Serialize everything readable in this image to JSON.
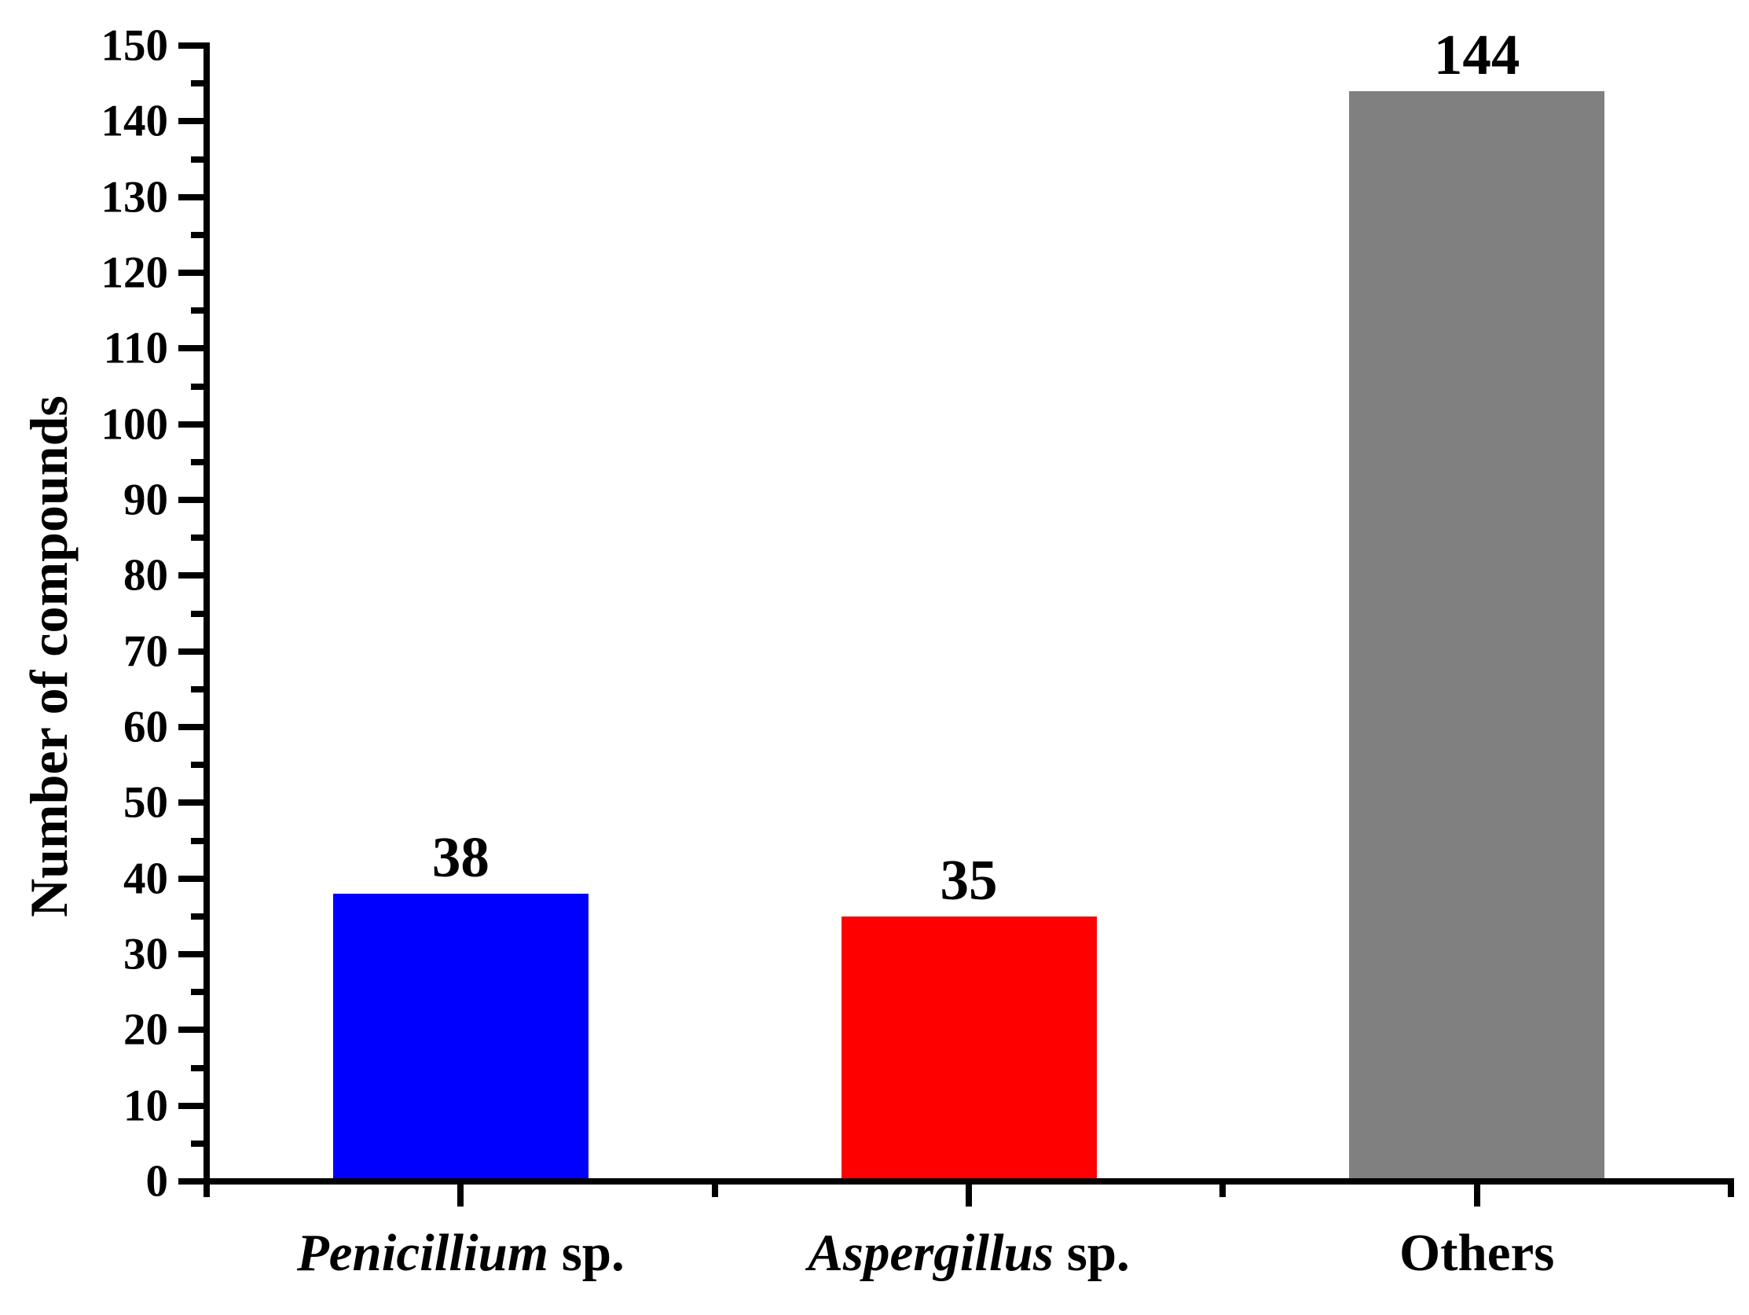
{
  "figure": {
    "background_color": "#ffffff",
    "text_color": "#000000",
    "axis_color": "#000000"
  },
  "chart_data": {
    "type": "bar",
    "title": "",
    "xlabel": "",
    "ylabel": "Number of compounds",
    "categories": [
      "Penicillium sp.",
      "Aspergillus sp.",
      "Others"
    ],
    "category_italic_segments": [
      "Penicillium",
      "Aspergillus",
      ""
    ],
    "values": [
      38,
      35,
      144
    ],
    "bar_value_labels": [
      "38",
      "35",
      "144"
    ],
    "bar_colors": [
      "#0000ff",
      "#ff0000",
      "#808080"
    ],
    "ylim": [
      0,
      150
    ],
    "yticks": [
      0,
      10,
      20,
      30,
      40,
      50,
      60,
      70,
      80,
      90,
      100,
      110,
      120,
      130,
      140,
      150
    ],
    "ytick_minor_step": 5,
    "bar_width_fraction": 0.5,
    "grid": "off",
    "legend": "none",
    "tick_direction": "out"
  }
}
